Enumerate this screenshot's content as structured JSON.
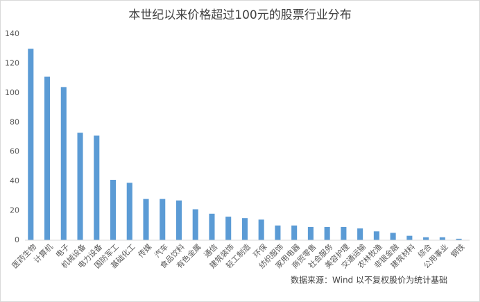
{
  "chart_data": {
    "type": "bar",
    "title": "本世纪以来价格超过100元的股票行业分布",
    "categories": [
      "医药生物",
      "计算机",
      "电子",
      "机械设备",
      "电力设备",
      "国防军工",
      "基础化工",
      "传媒",
      "汽车",
      "食品饮料",
      "有色金属",
      "通信",
      "建筑装饰",
      "轻工制造",
      "环保",
      "纺织服饰",
      "家用电器",
      "商贸零售",
      "社会服务",
      "美容护理",
      "交通运输",
      "农林牧渔",
      "非银金融",
      "建筑材料",
      "综合",
      "公用事业",
      "钢铁"
    ],
    "values": [
      130,
      111,
      104,
      73,
      71,
      41,
      39,
      28,
      28,
      27,
      21,
      18,
      16,
      15,
      14,
      10,
      10,
      9,
      9,
      9,
      8,
      6,
      5,
      3,
      2,
      2,
      1
    ],
    "color": "#5b9bd5",
    "ylim": [
      0,
      140
    ],
    "yticks": [
      0,
      20,
      40,
      60,
      80,
      100,
      120,
      140
    ],
    "grid": false,
    "annotation": "数据来源：Wind  以不复权股价为统计基础"
  }
}
